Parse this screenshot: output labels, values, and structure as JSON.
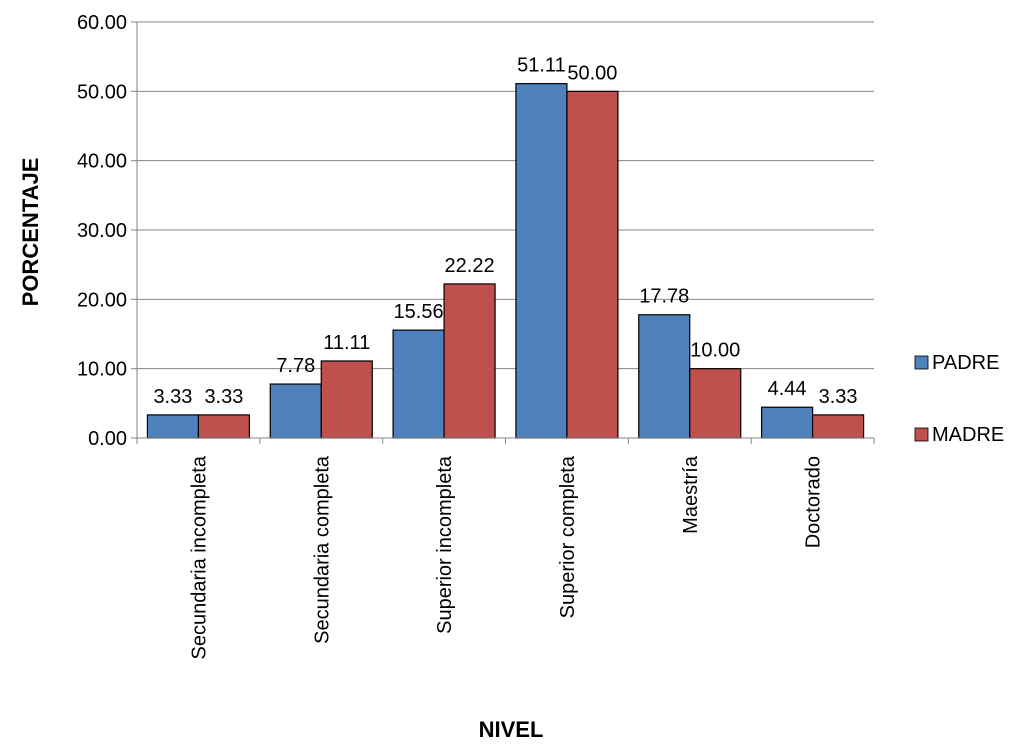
{
  "chart_data": {
    "type": "bar",
    "title": "",
    "xlabel": "NIVEL",
    "ylabel": "PORCENTAJE",
    "ylim": [
      0,
      60
    ],
    "yticks": [
      0,
      10,
      20,
      30,
      40,
      50,
      60
    ],
    "ytick_labels": [
      "0.00",
      "10.00",
      "20.00",
      "30.00",
      "40.00",
      "50.00",
      "60.00"
    ],
    "grid": true,
    "legend_position": "right",
    "categories": [
      "Secundaria incompleta",
      "Secundaria completa",
      "Superior incompleta",
      "Superior completa",
      "Maestría",
      "Doctorado"
    ],
    "series": [
      {
        "name": "PADRE",
        "color": "#4F81BD",
        "values": [
          3.33,
          7.78,
          15.56,
          51.11,
          17.78,
          4.44
        ],
        "labels": [
          "3.33",
          "7.78",
          "15.56",
          "51.11",
          "17.78",
          "4.44"
        ]
      },
      {
        "name": "MADRE",
        "color": "#C0504D",
        "values": [
          3.33,
          11.11,
          22.22,
          50.0,
          10.0,
          3.33
        ],
        "labels": [
          "3.33",
          "11.11",
          "22.22",
          "50.00",
          "10.00",
          "3.33"
        ]
      }
    ]
  }
}
